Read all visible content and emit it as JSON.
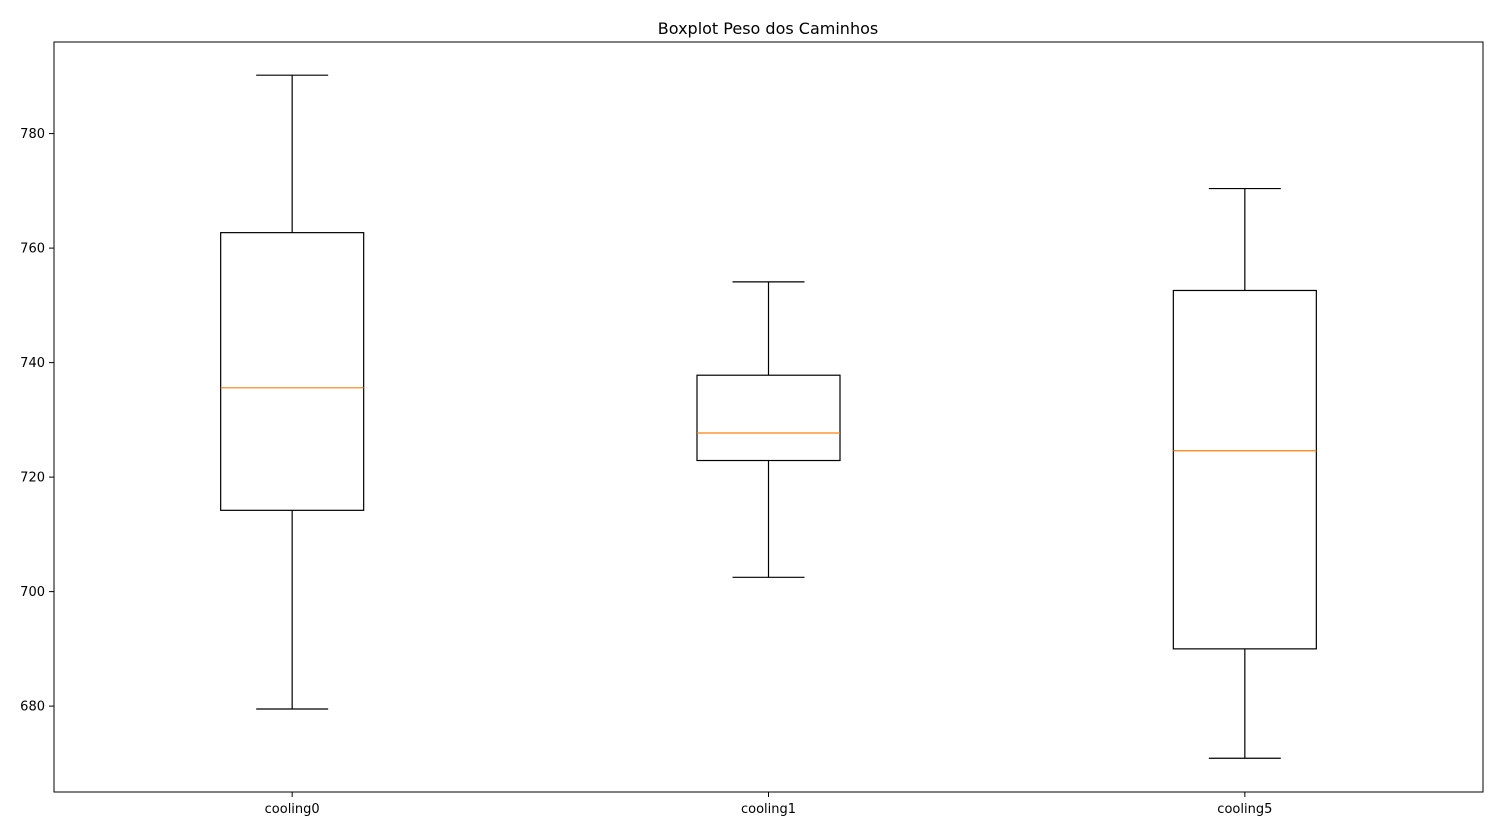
{
  "chart_data": {
    "type": "boxplot",
    "title": "Boxplot Peso dos Caminhos",
    "xlabel": "",
    "ylabel": "",
    "ylim": [
      665,
      796
    ],
    "yticks": [
      680,
      700,
      720,
      740,
      760,
      780
    ],
    "grid": false,
    "categories": [
      "cooling0",
      "cooling1",
      "cooling5"
    ],
    "boxes": [
      {
        "label": "cooling0",
        "whisker_low": 679.5,
        "q1": 714.2,
        "median": 735.6,
        "q3": 762.7,
        "whisker_high": 790.2
      },
      {
        "label": "cooling1",
        "whisker_low": 702.5,
        "q1": 722.9,
        "median": 727.7,
        "q3": 737.8,
        "whisker_high": 754.1
      },
      {
        "label": "cooling5",
        "whisker_low": 670.9,
        "q1": 690.0,
        "median": 724.6,
        "q3": 752.6,
        "whisker_high": 770.4
      }
    ],
    "colors": {
      "box": "#000000",
      "median": "#ff7f0e",
      "axis": "#000000"
    }
  }
}
